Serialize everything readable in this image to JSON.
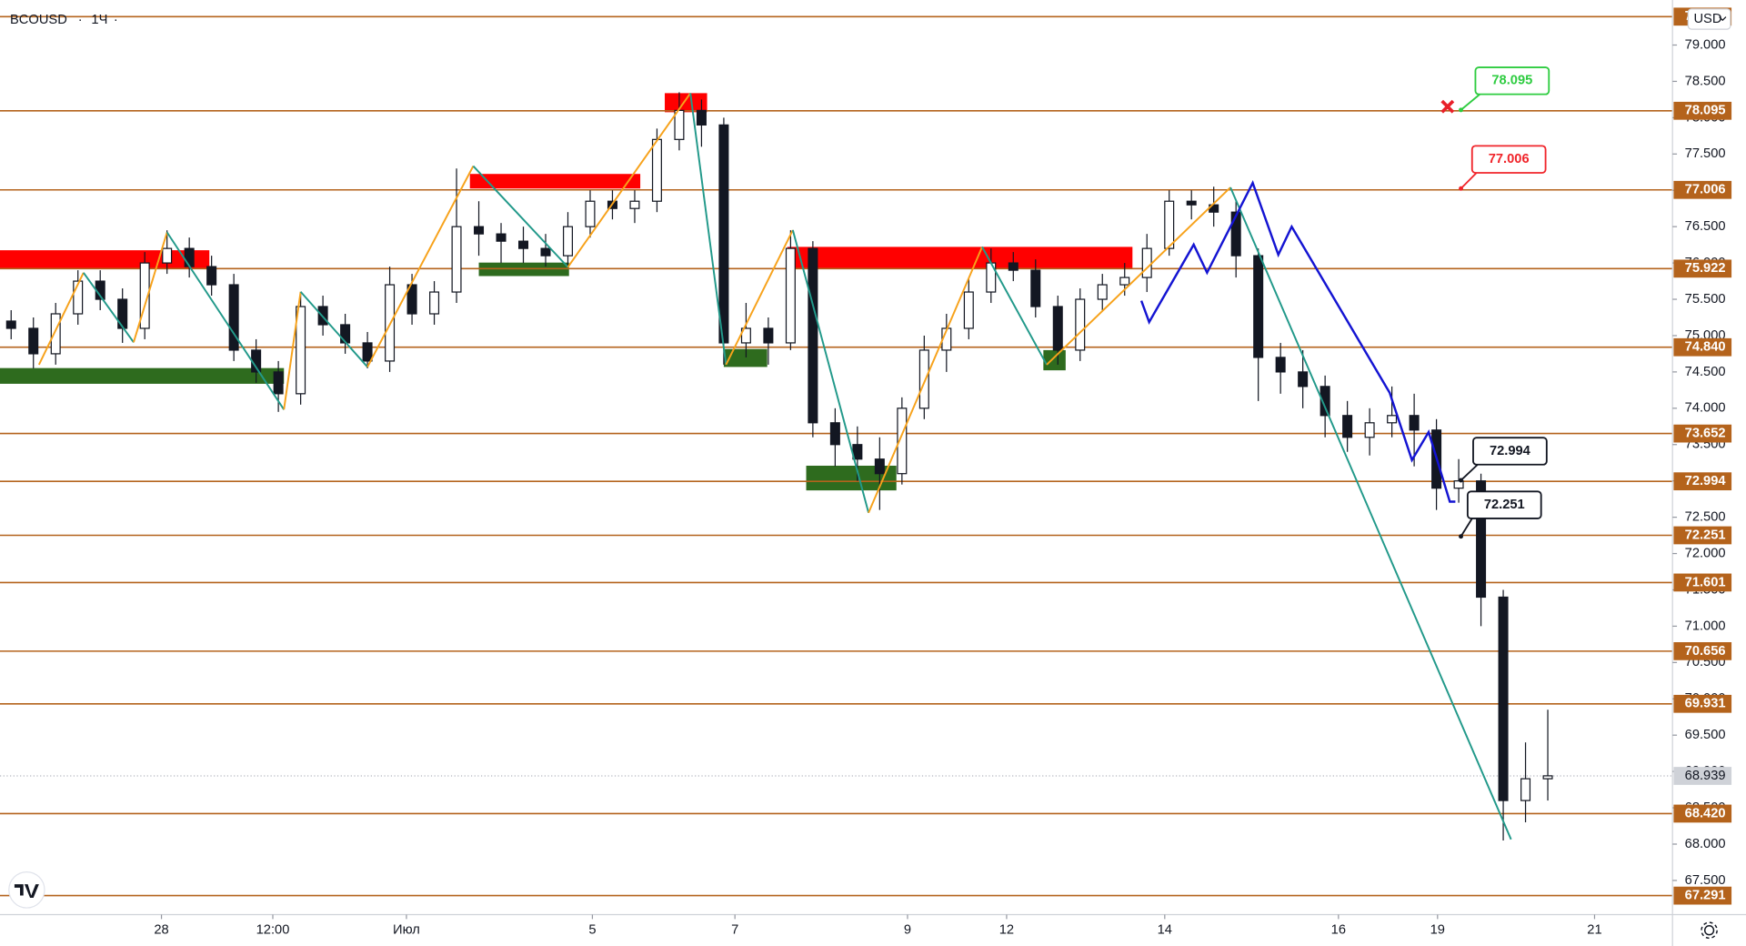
{
  "chart_data": {
    "type": "candlestick",
    "title": "BCOUSD",
    "interval": "1Ч",
    "currency": "USD",
    "open": [
      75.2,
      75.1,
      74.75,
      75.3,
      75.75,
      75.5,
      75.1,
      76.0,
      76.2,
      75.95,
      75.7,
      74.8,
      74.5,
      74.2,
      75.4,
      75.15,
      74.9,
      74.65,
      75.7,
      75.3,
      75.6,
      76.5,
      76.4,
      76.3,
      76.2,
      76.1,
      76.5,
      76.85,
      76.75,
      76.85,
      77.7,
      78.1,
      77.9,
      74.9,
      75.1,
      74.9,
      76.2,
      73.8,
      73.5,
      73.3,
      73.1,
      74.0,
      74.8,
      75.1,
      75.6,
      76.0,
      75.9,
      75.4,
      74.8,
      75.5,
      75.7,
      75.8,
      76.2,
      76.85,
      76.8,
      76.7,
      76.1,
      74.7,
      74.5,
      74.3,
      73.9,
      73.6,
      73.8,
      73.9,
      73.7,
      72.9,
      73.0,
      71.4,
      68.6,
      68.9
    ],
    "high": [
      75.35,
      75.25,
      75.45,
      75.9,
      75.9,
      75.65,
      76.15,
      76.45,
      76.35,
      76.1,
      75.85,
      74.95,
      74.65,
      75.6,
      75.55,
      75.3,
      75.05,
      75.95,
      75.85,
      75.75,
      77.3,
      76.85,
      76.55,
      76.5,
      76.4,
      76.7,
      77.0,
      77.0,
      77.0,
      77.85,
      78.35,
      78.25,
      78.0,
      75.45,
      75.25,
      76.45,
      76.3,
      74.0,
      73.75,
      73.6,
      74.15,
      75.0,
      75.3,
      75.8,
      76.2,
      76.15,
      76.05,
      75.55,
      75.65,
      75.85,
      76.0,
      76.4,
      77.0,
      77.0,
      77.05,
      76.85,
      76.2,
      74.9,
      74.8,
      74.45,
      74.1,
      74.0,
      74.3,
      74.2,
      73.85,
      73.3,
      73.1,
      71.5,
      69.4,
      69.85
    ],
    "low": [
      74.95,
      74.55,
      74.6,
      75.15,
      75.35,
      74.9,
      74.95,
      75.85,
      75.8,
      75.55,
      74.65,
      74.35,
      73.95,
      74.05,
      75.0,
      74.75,
      74.55,
      74.5,
      75.15,
      75.15,
      75.45,
      76.1,
      76.0,
      76.0,
      75.95,
      75.95,
      76.35,
      76.6,
      76.55,
      76.7,
      77.55,
      77.6,
      74.6,
      74.7,
      74.6,
      74.8,
      73.6,
      73.2,
      73.0,
      72.6,
      72.95,
      73.85,
      74.5,
      74.95,
      75.45,
      75.75,
      75.25,
      74.6,
      74.65,
      75.35,
      75.55,
      75.6,
      76.1,
      76.6,
      76.5,
      75.8,
      74.1,
      74.2,
      74.0,
      73.6,
      73.4,
      73.35,
      73.6,
      73.2,
      72.6,
      72.7,
      71.0,
      68.05,
      68.3,
      68.6
    ],
    "close": [
      75.1,
      74.75,
      75.3,
      75.75,
      75.5,
      75.1,
      76.0,
      76.2,
      75.95,
      75.7,
      74.8,
      74.5,
      74.2,
      75.4,
      75.15,
      74.9,
      74.65,
      75.7,
      75.3,
      75.6,
      76.5,
      76.4,
      76.3,
      76.2,
      76.1,
      76.5,
      76.85,
      76.75,
      76.85,
      77.7,
      78.1,
      77.9,
      74.9,
      75.1,
      74.9,
      76.2,
      73.8,
      73.5,
      73.3,
      73.1,
      74.0,
      74.8,
      75.1,
      75.6,
      76.0,
      75.9,
      75.4,
      74.8,
      75.5,
      75.7,
      75.8,
      76.2,
      76.85,
      76.8,
      76.7,
      76.1,
      74.7,
      74.5,
      74.3,
      73.9,
      73.6,
      73.8,
      73.9,
      73.7,
      72.9,
      73.0,
      71.4,
      68.6,
      68.9,
      68.94
    ],
    "up_color": "#ffffff",
    "down_color": "#131722",
    "ylim": [
      67.03,
      79.62
    ],
    "yticks": [
      {
        "value": 67.5,
        "label": "67.500"
      },
      {
        "value": 68,
        "label": "68.000"
      },
      {
        "value": 68.5,
        "label": "68.500"
      },
      {
        "value": 69,
        "label": "69.000"
      },
      {
        "value": 69.5,
        "label": "69.500"
      },
      {
        "value": 70,
        "label": "70.000"
      },
      {
        "value": 70.5,
        "label": "70.500"
      },
      {
        "value": 71,
        "label": "71.000"
      },
      {
        "value": 71.5,
        "label": "71.500"
      },
      {
        "value": 72,
        "label": "72.000"
      },
      {
        "value": 72.5,
        "label": "72.500"
      },
      {
        "value": 73,
        "label": "73.000"
      },
      {
        "value": 73.5,
        "label": "73.500"
      },
      {
        "value": 74,
        "label": "74.000"
      },
      {
        "value": 74.5,
        "label": "74.500"
      },
      {
        "value": 75,
        "label": "75.000"
      },
      {
        "value": 75.5,
        "label": "75.500"
      },
      {
        "value": 76,
        "label": "76.000"
      },
      {
        "value": 76.5,
        "label": "76.500"
      },
      {
        "value": 77,
        "label": "77.000"
      },
      {
        "value": 77.5,
        "label": "77.500"
      },
      {
        "value": 78,
        "label": "78.000"
      },
      {
        "value": 78.5,
        "label": "78.500"
      },
      {
        "value": 79,
        "label": "79.000"
      }
    ],
    "xlim": [
      -0.5,
      74.6
    ],
    "xticks": [
      {
        "value": 6.75,
        "label": "28"
      },
      {
        "value": 11.75,
        "label": "12:00"
      },
      {
        "value": 17.75,
        "label": "Июл"
      },
      {
        "value": 26.1,
        "label": "5"
      },
      {
        "value": 32.5,
        "label": "7"
      },
      {
        "value": 40.25,
        "label": "9"
      },
      {
        "value": 44.7,
        "label": "12"
      },
      {
        "value": 51.8,
        "label": "14"
      },
      {
        "value": 59.6,
        "label": "16"
      },
      {
        "value": 64.05,
        "label": "19"
      },
      {
        "value": 71.1,
        "label": "21"
      }
    ],
    "levels": [
      79.391,
      78.095,
      77.006,
      75.922,
      {
        "value": 74.84,
        "label": "74.840"
      },
      73.652,
      72.994,
      72.251,
      71.601,
      70.656,
      69.931,
      {
        "value": 68.42,
        "label": "68.420"
      },
      67.291
    ],
    "level_color": "#b4631c",
    "last_price": 68.939,
    "annotations": [
      {
        "text": "78.095",
        "color": "#2ecc40"
      },
      {
        "text": "77.006",
        "color": "#f0242a"
      },
      {
        "text": "72.994",
        "color": "#131722"
      },
      {
        "text": "72.251",
        "color": "#131722"
      }
    ]
  }
}
